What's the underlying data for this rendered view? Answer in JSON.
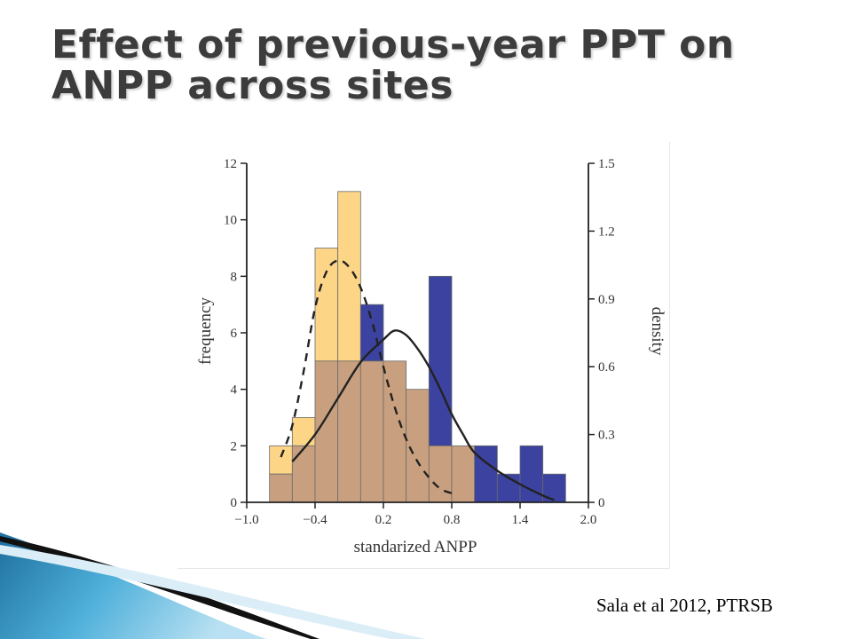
{
  "slide": {
    "title": "Effect of previous-year PPT on ANPP across sites",
    "citation": "Sala et al 2012, PTRSB"
  },
  "chart_data": {
    "type": "bar",
    "title": "",
    "xlabel": "standarized ANPP",
    "ylabel": "frequency",
    "y2label": "density",
    "xlim": [
      -1.0,
      2.0
    ],
    "ylim": [
      0,
      12
    ],
    "y2lim": [
      0,
      1.5
    ],
    "x_ticks": [
      -1.0,
      -0.4,
      0.2,
      0.8,
      1.4,
      2.0
    ],
    "x_tick_labels": [
      "−1.0",
      "−0.4",
      "0.2",
      "0.8",
      "1.4",
      "2.0"
    ],
    "y_ticks": [
      0,
      2,
      4,
      6,
      8,
      10,
      12
    ],
    "y2_ticks": [
      0,
      0.3,
      0.6,
      0.9,
      1.2,
      1.5
    ],
    "bin_width": 0.2,
    "series": [
      {
        "color": "#fdd587",
        "bins": [
          -0.8,
          -0.6,
          -0.4,
          -0.2,
          0.0,
          0.2,
          0.4,
          0.6,
          0.8
        ],
        "values": [
          2,
          3,
          9,
          11,
          5,
          5,
          4,
          2,
          2
        ]
      },
      {
        "color": "#3b42a0",
        "bins": [
          -0.8,
          -0.6,
          -0.4,
          -0.2,
          0.0,
          0.2,
          0.4,
          0.6,
          0.8,
          1.0,
          1.2,
          1.4,
          1.6
        ],
        "values": [
          1,
          2,
          5,
          5,
          7,
          5,
          4,
          8,
          2,
          2,
          1,
          2,
          1
        ]
      }
    ],
    "overlap_color": "#c8a07f",
    "density_curves": [
      {
        "style": "dashed",
        "points": [
          [
            -0.7,
            0.2
          ],
          [
            -0.6,
            0.34
          ],
          [
            -0.5,
            0.58
          ],
          [
            -0.4,
            0.86
          ],
          [
            -0.3,
            1.02
          ],
          [
            -0.2,
            1.07
          ],
          [
            -0.1,
            1.04
          ],
          [
            0.0,
            0.95
          ],
          [
            0.1,
            0.8
          ],
          [
            0.2,
            0.6
          ],
          [
            0.3,
            0.42
          ],
          [
            0.4,
            0.28
          ],
          [
            0.5,
            0.18
          ],
          [
            0.6,
            0.11
          ],
          [
            0.7,
            0.06
          ],
          [
            0.8,
            0.04
          ]
        ]
      },
      {
        "style": "solid",
        "points": [
          [
            -0.6,
            0.18
          ],
          [
            -0.4,
            0.3
          ],
          [
            -0.2,
            0.46
          ],
          [
            0.0,
            0.62
          ],
          [
            0.2,
            0.72
          ],
          [
            0.3,
            0.76
          ],
          [
            0.4,
            0.74
          ],
          [
            0.5,
            0.68
          ],
          [
            0.6,
            0.6
          ],
          [
            0.7,
            0.5
          ],
          [
            0.8,
            0.39
          ],
          [
            0.9,
            0.3
          ],
          [
            1.0,
            0.22
          ],
          [
            1.2,
            0.14
          ],
          [
            1.4,
            0.08
          ],
          [
            1.6,
            0.03
          ],
          [
            1.7,
            0.01
          ]
        ]
      }
    ]
  }
}
